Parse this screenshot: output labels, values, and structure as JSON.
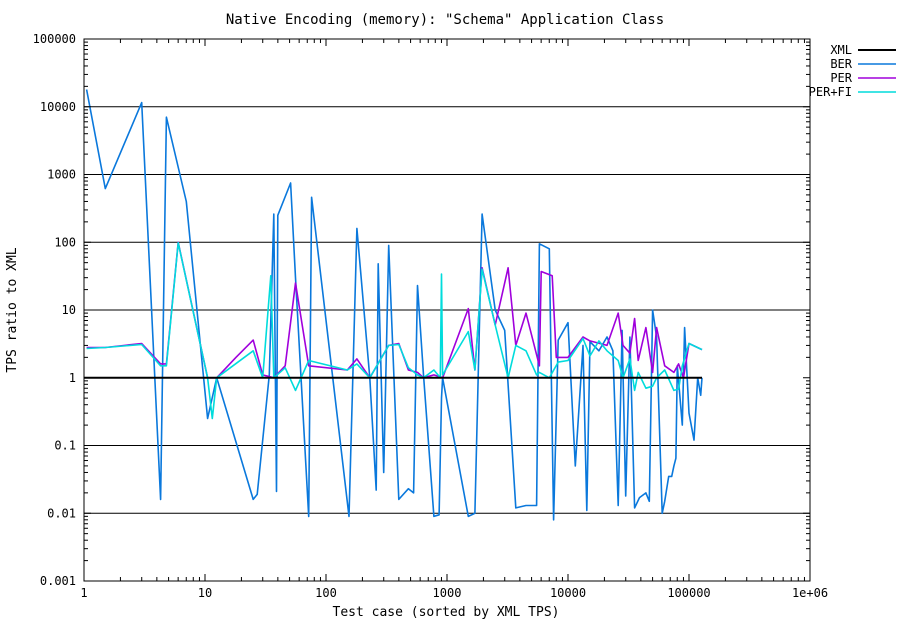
{
  "chart_data": {
    "type": "line",
    "title": "Native Encoding (memory): \"Schema\" Application Class",
    "xlabel": "Test case (sorted by XML TPS)",
    "ylabel": "TPS ratio to XML",
    "x_scale": "log",
    "y_scale": "log",
    "xlim": [
      1,
      1000000
    ],
    "ylim": [
      0.001,
      100000
    ],
    "x_ticks": [
      {
        "value": 1,
        "label": "1"
      },
      {
        "value": 10,
        "label": "10"
      },
      {
        "value": 100,
        "label": "100"
      },
      {
        "value": 1000,
        "label": "1000"
      },
      {
        "value": 10000,
        "label": "10000"
      },
      {
        "value": 100000,
        "label": "100000"
      },
      {
        "value": 1000000,
        "label": "1e+06"
      }
    ],
    "y_ticks": [
      {
        "value": 0.001,
        "label": "0.001"
      },
      {
        "value": 0.01,
        "label": "0.01"
      },
      {
        "value": 0.1,
        "label": "0.1"
      },
      {
        "value": 1,
        "label": "1"
      },
      {
        "value": 10,
        "label": "10"
      },
      {
        "value": 100,
        "label": "100"
      },
      {
        "value": 1000,
        "label": "1000"
      },
      {
        "value": 10000,
        "label": "10000"
      },
      {
        "value": 100000,
        "label": "100000"
      }
    ],
    "grid": "horizontal",
    "legend_position": "top-right",
    "series": [
      {
        "name": "BER",
        "color": "#0a78dc",
        "points": [
          [
            1.05,
            18000
          ],
          [
            1.5,
            620
          ],
          [
            3.0,
            11500
          ],
          [
            4.3,
            0.016
          ],
          [
            4.8,
            7000
          ],
          [
            7.0,
            400
          ],
          [
            10.5,
            0.25
          ],
          [
            12.5,
            1.0
          ],
          [
            25,
            0.016
          ],
          [
            27,
            0.019
          ],
          [
            34,
            1.1
          ],
          [
            37,
            260
          ],
          [
            39,
            0.021
          ],
          [
            40,
            250
          ],
          [
            51,
            750
          ],
          [
            56,
            30
          ],
          [
            72,
            0.009
          ],
          [
            76,
            460
          ],
          [
            155,
            0.009
          ],
          [
            180,
            160
          ],
          [
            230,
            1.0
          ],
          [
            260,
            0.022
          ],
          [
            270,
            48
          ],
          [
            300,
            0.04
          ],
          [
            330,
            90
          ],
          [
            400,
            0.016
          ],
          [
            480,
            0.023
          ],
          [
            530,
            0.02
          ],
          [
            570,
            23
          ],
          [
            640,
            1.1
          ],
          [
            780,
            0.009
          ],
          [
            860,
            0.0095
          ],
          [
            900,
            0.5
          ],
          [
            920,
            1.0
          ],
          [
            1500,
            0.009
          ],
          [
            1700,
            0.01
          ],
          [
            1950,
            260
          ],
          [
            2500,
            10
          ],
          [
            3000,
            5
          ],
          [
            3700,
            0.012
          ],
          [
            4500,
            0.013
          ],
          [
            5500,
            0.013
          ],
          [
            5800,
            95
          ],
          [
            7000,
            80
          ],
          [
            7600,
            0.008
          ],
          [
            8300,
            3.6
          ],
          [
            10000,
            6.5
          ],
          [
            11500,
            0.05
          ],
          [
            13300,
            3.0
          ],
          [
            14300,
            0.011
          ],
          [
            15200,
            3.4
          ],
          [
            18000,
            2.5
          ],
          [
            21000,
            4.0
          ],
          [
            23500,
            2.5
          ],
          [
            26000,
            0.013
          ],
          [
            28000,
            5.0
          ],
          [
            30000,
            0.018
          ],
          [
            32500,
            4.0
          ],
          [
            35500,
            0.012
          ],
          [
            39000,
            0.017
          ],
          [
            44000,
            0.02
          ],
          [
            47000,
            0.015
          ],
          [
            50000,
            10
          ],
          [
            54000,
            4.0
          ],
          [
            60000,
            0.01
          ],
          [
            63000,
            0.015
          ],
          [
            68000,
            0.035
          ],
          [
            72000,
            0.035
          ],
          [
            75000,
            0.05
          ],
          [
            78000,
            0.065
          ],
          [
            80000,
            1.5
          ],
          [
            88000,
            0.2
          ],
          [
            92000,
            5.5
          ],
          [
            100000,
            0.3
          ],
          [
            110000,
            0.12
          ],
          [
            118000,
            1.0
          ],
          [
            125000,
            0.55
          ],
          [
            128000,
            1.0
          ]
        ]
      },
      {
        "name": "PER",
        "color": "#a000dc",
        "points": [
          [
            1.05,
            2.8
          ],
          [
            1.5,
            2.8
          ],
          [
            3.0,
            3.2
          ],
          [
            4.3,
            1.6
          ],
          [
            4.8,
            1.6
          ],
          [
            6.0,
            100
          ],
          [
            10.5,
            1.0
          ],
          [
            12.5,
            1.0
          ],
          [
            18,
            2.0
          ],
          [
            25,
            3.6
          ],
          [
            30,
            1.1
          ],
          [
            37,
            1.0
          ],
          [
            46,
            1.5
          ],
          [
            56,
            25
          ],
          [
            72,
            1.5
          ],
          [
            150,
            1.3
          ],
          [
            180,
            1.9
          ],
          [
            230,
            1.0
          ],
          [
            330,
            3.0
          ],
          [
            400,
            3.2
          ],
          [
            480,
            1.3
          ],
          [
            570,
            1.2
          ],
          [
            640,
            1.0
          ],
          [
            780,
            1.1
          ],
          [
            920,
            1.0
          ],
          [
            1500,
            10.5
          ],
          [
            1700,
            1.3
          ],
          [
            1950,
            42
          ],
          [
            2500,
            6.0
          ],
          [
            3200,
            42
          ],
          [
            3700,
            3.0
          ],
          [
            4500,
            9.0
          ],
          [
            5800,
            1.5
          ],
          [
            6000,
            37
          ],
          [
            7400,
            32
          ],
          [
            8000,
            2.0
          ],
          [
            10000,
            2.0
          ],
          [
            13300,
            4.0
          ],
          [
            15200,
            3.5
          ],
          [
            21000,
            3.0
          ],
          [
            26000,
            9.0
          ],
          [
            28500,
            3.0
          ],
          [
            32500,
            2.3
          ],
          [
            35500,
            7.5
          ],
          [
            38000,
            1.8
          ],
          [
            44000,
            5.5
          ],
          [
            50000,
            1.2
          ],
          [
            54000,
            5.5
          ],
          [
            63000,
            1.5
          ],
          [
            75000,
            1.2
          ],
          [
            82000,
            1.6
          ],
          [
            90000,
            1.0
          ],
          [
            100000,
            3.2
          ],
          [
            128000,
            2.6
          ]
        ]
      },
      {
        "name": "PER+FI",
        "color": "#00dcdc",
        "points": [
          [
            1.05,
            2.7
          ],
          [
            1.5,
            2.8
          ],
          [
            3.0,
            3.1
          ],
          [
            4.3,
            1.5
          ],
          [
            4.8,
            1.5
          ],
          [
            6.0,
            98
          ],
          [
            10.5,
            1.0
          ],
          [
            11.5,
            0.25
          ],
          [
            12.5,
            1.0
          ],
          [
            25,
            2.5
          ],
          [
            30,
            1.0
          ],
          [
            35,
            32
          ],
          [
            37,
            1.0
          ],
          [
            46,
            1.4
          ],
          [
            56,
            0.65
          ],
          [
            72,
            1.8
          ],
          [
            150,
            1.3
          ],
          [
            180,
            1.6
          ],
          [
            230,
            1.0
          ],
          [
            330,
            3.0
          ],
          [
            400,
            3.1
          ],
          [
            480,
            1.4
          ],
          [
            570,
            1.1
          ],
          [
            640,
            1.0
          ],
          [
            780,
            1.3
          ],
          [
            880,
            1.0
          ],
          [
            900,
            34
          ],
          [
            920,
            1.1
          ],
          [
            1500,
            4.8
          ],
          [
            1700,
            1.3
          ],
          [
            1950,
            40
          ],
          [
            2500,
            6.0
          ],
          [
            3200,
            1.0
          ],
          [
            3700,
            3.0
          ],
          [
            4500,
            2.5
          ],
          [
            5500,
            1.1
          ],
          [
            5800,
            1.2
          ],
          [
            7000,
            1.0
          ],
          [
            8300,
            1.7
          ],
          [
            10000,
            1.8
          ],
          [
            13300,
            3.8
          ],
          [
            15200,
            2.1
          ],
          [
            18000,
            3.5
          ],
          [
            21000,
            2.5
          ],
          [
            26000,
            1.8
          ],
          [
            28500,
            1.0
          ],
          [
            32500,
            1.9
          ],
          [
            35500,
            0.65
          ],
          [
            38000,
            1.2
          ],
          [
            44000,
            0.7
          ],
          [
            50000,
            0.75
          ],
          [
            54000,
            1.0
          ],
          [
            63000,
            1.3
          ],
          [
            75000,
            0.65
          ],
          [
            82000,
            0.68
          ],
          [
            88000,
            1.5
          ],
          [
            100000,
            3.2
          ],
          [
            128000,
            2.6
          ]
        ]
      },
      {
        "name": "XML",
        "color": "#000000",
        "points": [
          [
            1,
            1
          ],
          [
            128000,
            1
          ]
        ]
      }
    ]
  }
}
